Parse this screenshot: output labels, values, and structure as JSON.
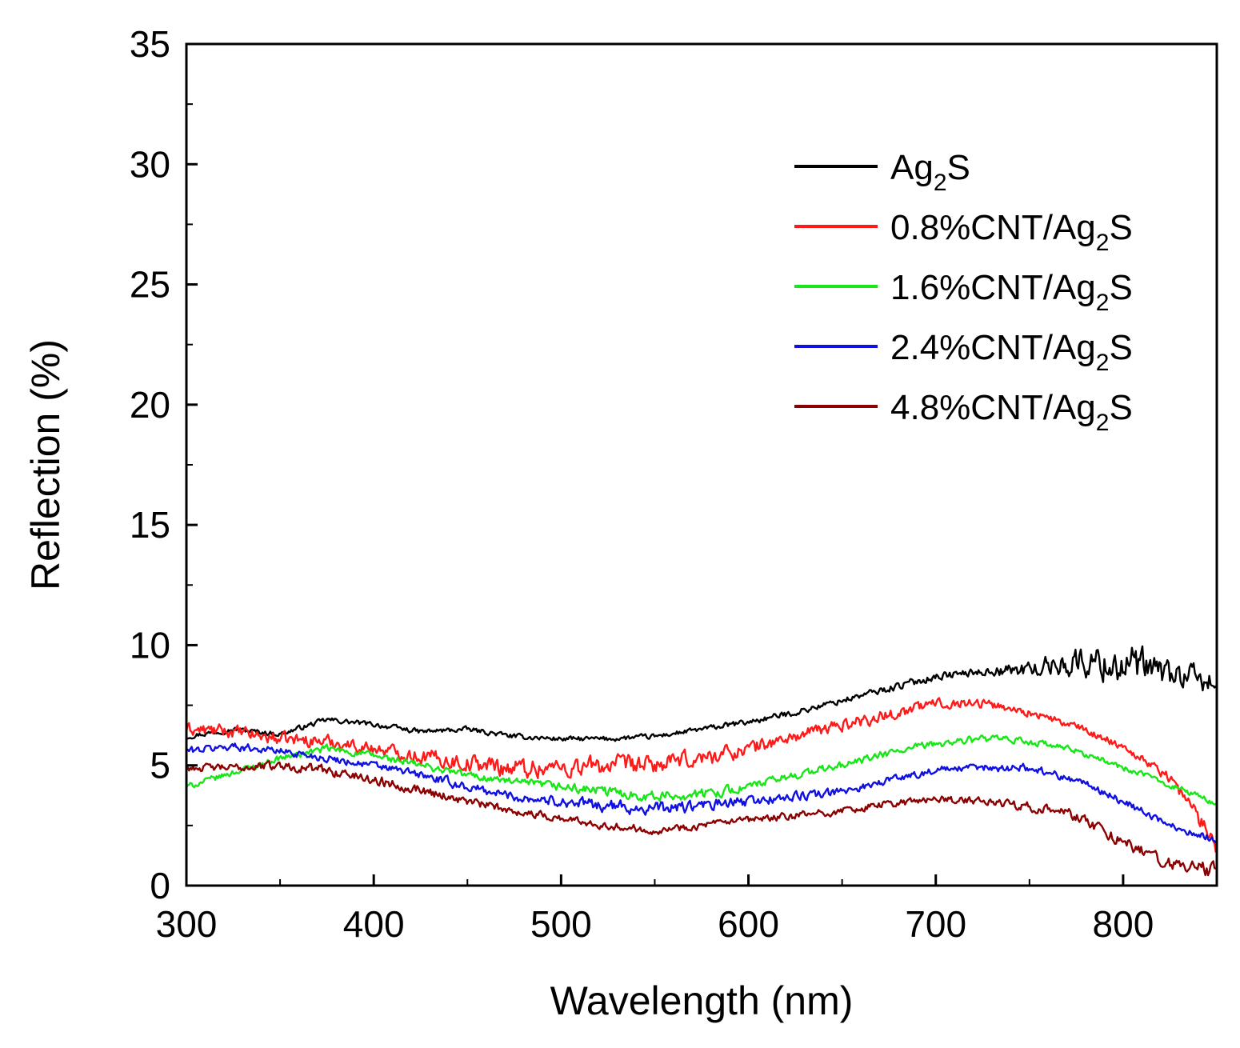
{
  "chart_data": {
    "type": "line",
    "title": "",
    "xlabel": "Wavelength (nm)",
    "ylabel": "Reflection (%)",
    "xlim": [
      300,
      850
    ],
    "ylim": [
      0,
      35
    ],
    "x_ticks": [
      300,
      400,
      500,
      600,
      700,
      800
    ],
    "y_ticks": [
      0,
      5,
      10,
      15,
      20,
      25,
      30,
      35
    ],
    "x_tick_labels": [
      "300",
      "400",
      "500",
      "600",
      "700",
      "800"
    ],
    "y_tick_labels": [
      "0",
      "5",
      "10",
      "15",
      "20",
      "25",
      "30",
      "35"
    ],
    "grid": false,
    "legend_position": "top-right",
    "x": [
      300,
      325,
      350,
      375,
      400,
      425,
      450,
      475,
      500,
      525,
      550,
      575,
      600,
      625,
      650,
      675,
      700,
      725,
      750,
      775,
      800,
      825,
      850
    ],
    "series": [
      {
        "name": "Ag2S",
        "label_main": "Ag",
        "label_sub": "2",
        "label_tail": "S",
        "color": "#000000",
        "values": [
          6.2,
          6.5,
          6.3,
          6.9,
          6.7,
          6.4,
          6.5,
          6.2,
          6.1,
          6.1,
          6.2,
          6.5,
          6.8,
          7.2,
          7.7,
          8.2,
          8.7,
          8.9,
          9.0,
          9.3,
          9.2,
          8.8,
          8.4
        ],
        "noise": [
          0.1,
          0.1,
          0.1,
          0.1,
          0.1,
          0.1,
          0.1,
          0.1,
          0.1,
          0.1,
          0.1,
          0.1,
          0.12,
          0.12,
          0.12,
          0.15,
          0.15,
          0.15,
          0.3,
          0.55,
          0.8,
          0.6,
          0.4
        ]
      },
      {
        "name": "0.8%CNT/Ag2S",
        "label_main": "0.8%CNT/Ag",
        "label_sub": "2",
        "label_tail": "S",
        "color": "#ff1a1a",
        "values": [
          6.5,
          6.4,
          6.1,
          6.0,
          5.7,
          5.4,
          5.1,
          4.9,
          4.9,
          5.0,
          5.0,
          5.3,
          5.7,
          6.2,
          6.7,
          7.1,
          7.6,
          7.6,
          7.2,
          6.6,
          5.8,
          4.5,
          1.8
        ],
        "noise": [
          0.25,
          0.25,
          0.25,
          0.25,
          0.25,
          0.3,
          0.35,
          0.4,
          0.4,
          0.4,
          0.35,
          0.35,
          0.3,
          0.25,
          0.25,
          0.25,
          0.2,
          0.2,
          0.15,
          0.15,
          0.15,
          0.2,
          0.45
        ]
      },
      {
        "name": "1.6%CNT/Ag2S",
        "label_main": "1.6%CNT/Ag",
        "label_sub": "2",
        "label_tail": "S",
        "color": "#17e617",
        "values": [
          4.1,
          4.7,
          5.3,
          5.7,
          5.4,
          5.0,
          4.6,
          4.3,
          4.1,
          3.9,
          3.7,
          3.8,
          4.1,
          4.6,
          5.0,
          5.5,
          5.9,
          6.1,
          6.0,
          5.6,
          4.9,
          4.2,
          3.4
        ],
        "noise": [
          0.12,
          0.12,
          0.12,
          0.15,
          0.15,
          0.15,
          0.15,
          0.15,
          0.18,
          0.2,
          0.2,
          0.2,
          0.18,
          0.15,
          0.15,
          0.15,
          0.15,
          0.15,
          0.15,
          0.12,
          0.12,
          0.12,
          0.12
        ]
      },
      {
        "name": "2.4%CNT/Ag2S",
        "label_main": "2.4%CNT/Ag",
        "label_sub": "2",
        "label_tail": "S",
        "color": "#1010e0",
        "values": [
          5.6,
          5.8,
          5.6,
          5.3,
          5.0,
          4.6,
          4.1,
          3.7,
          3.5,
          3.3,
          3.2,
          3.3,
          3.5,
          3.7,
          3.9,
          4.4,
          4.8,
          4.9,
          4.9,
          4.4,
          3.5,
          2.5,
          1.9
        ],
        "noise": [
          0.15,
          0.15,
          0.15,
          0.15,
          0.15,
          0.18,
          0.18,
          0.2,
          0.2,
          0.25,
          0.25,
          0.25,
          0.2,
          0.18,
          0.15,
          0.15,
          0.15,
          0.15,
          0.18,
          0.15,
          0.15,
          0.15,
          0.15
        ]
      },
      {
        "name": "4.8%CNT/Ag2S",
        "label_main": "4.8%CNT/Ag",
        "label_sub": "2",
        "label_tail": "S",
        "color": "#8b0000",
        "values": [
          4.9,
          4.9,
          5.0,
          4.8,
          4.4,
          4.0,
          3.5,
          3.1,
          2.8,
          2.5,
          2.3,
          2.5,
          2.7,
          2.9,
          3.1,
          3.4,
          3.6,
          3.5,
          3.3,
          2.9,
          1.8,
          0.9,
          0.6
        ],
        "noise": [
          0.15,
          0.15,
          0.18,
          0.2,
          0.2,
          0.2,
          0.18,
          0.15,
          0.15,
          0.15,
          0.15,
          0.15,
          0.15,
          0.15,
          0.15,
          0.15,
          0.15,
          0.15,
          0.18,
          0.2,
          0.22,
          0.25,
          0.3
        ]
      }
    ]
  }
}
